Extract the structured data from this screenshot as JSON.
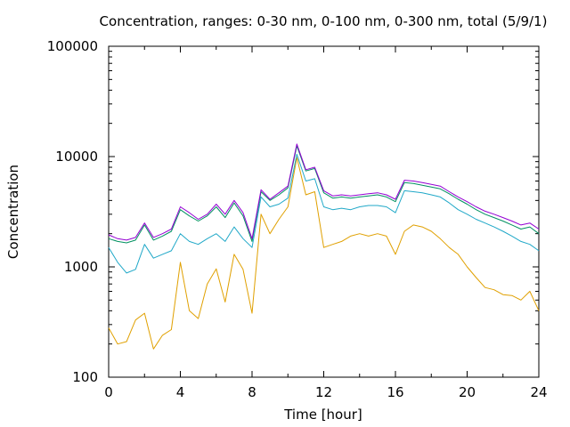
{
  "chart_data": {
    "type": "line",
    "title": "Concentration, ranges: 0-30 nm, 0-100 nm, 0-300 nm, total (5/9/1)",
    "xlabel": "Time [hour]",
    "ylabel": "Concentration",
    "xlim": [
      0,
      24
    ],
    "ylim": [
      100,
      100000
    ],
    "yscale": "log",
    "grid": false,
    "xticks": [
      0,
      4,
      8,
      12,
      16,
      20,
      24
    ],
    "xtick_labels": [
      "0",
      "4",
      "8",
      "12",
      "16",
      "20",
      "24"
    ],
    "yticks": [
      100,
      1000,
      10000,
      100000
    ],
    "ytick_labels": [
      "100",
      "1000",
      "10000",
      "100000"
    ],
    "x": [
      0,
      0.5,
      1,
      1.5,
      2,
      2.5,
      3,
      3.5,
      4,
      4.5,
      5,
      5.5,
      6,
      6.5,
      7,
      7.5,
      8,
      8.5,
      9,
      9.5,
      10,
      10.5,
      11,
      11.5,
      12,
      12.5,
      13,
      13.5,
      14,
      14.5,
      15,
      15.5,
      16,
      16.5,
      17,
      17.5,
      18,
      18.5,
      19,
      19.5,
      20,
      20.5,
      21,
      21.5,
      22,
      22.5,
      23,
      23.5,
      24
    ],
    "series": [
      {
        "color": "#e0a000",
        "values": [
          280,
          200,
          210,
          330,
          380,
          180,
          240,
          270,
          1100,
          400,
          340,
          700,
          960,
          480,
          1300,
          950,
          380,
          3000,
          2000,
          2700,
          3500,
          9800,
          4500,
          4800,
          1500,
          1600,
          1700,
          1900,
          2000,
          1900,
          2000,
          1900,
          1300,
          2100,
          2400,
          2300,
          2100,
          1800,
          1500,
          1300,
          1000,
          800,
          650,
          620,
          560,
          550,
          500,
          600,
          400
        ]
      },
      {
        "color": "#20a8c8",
        "values": [
          1500,
          1100,
          880,
          950,
          1600,
          1200,
          1300,
          1400,
          2000,
          1700,
          1600,
          1800,
          2000,
          1700,
          2300,
          1800,
          1500,
          4300,
          3500,
          3700,
          4200,
          10500,
          6000,
          6300,
          3500,
          3300,
          3400,
          3300,
          3500,
          3600,
          3600,
          3500,
          3100,
          4900,
          4800,
          4700,
          4500,
          4300,
          3800,
          3300,
          3000,
          2700,
          2500,
          2300,
          2100,
          1900,
          1700,
          1600,
          1400
        ]
      },
      {
        "color": "#009060",
        "values": [
          1800,
          1700,
          1650,
          1750,
          2400,
          1750,
          1900,
          2100,
          3300,
          2900,
          2600,
          2900,
          3500,
          2800,
          3800,
          2900,
          1700,
          4800,
          4000,
          4500,
          5200,
          12500,
          7400,
          7800,
          4700,
          4200,
          4300,
          4200,
          4300,
          4400,
          4500,
          4300,
          3900,
          5800,
          5700,
          5500,
          5300,
          5100,
          4600,
          4100,
          3700,
          3300,
          3000,
          2800,
          2600,
          2400,
          2200,
          2300,
          2000
        ]
      },
      {
        "color": "#9400d3",
        "values": [
          1950,
          1800,
          1750,
          1850,
          2500,
          1850,
          2000,
          2200,
          3500,
          3100,
          2700,
          3000,
          3700,
          3000,
          4000,
          3100,
          1800,
          5000,
          4100,
          4700,
          5400,
          13000,
          7600,
          8000,
          4900,
          4400,
          4500,
          4400,
          4500,
          4600,
          4700,
          4500,
          4100,
          6100,
          6000,
          5800,
          5600,
          5400,
          4800,
          4300,
          3900,
          3500,
          3200,
          3000,
          2800,
          2600,
          2400,
          2500,
          2200
        ]
      }
    ]
  }
}
